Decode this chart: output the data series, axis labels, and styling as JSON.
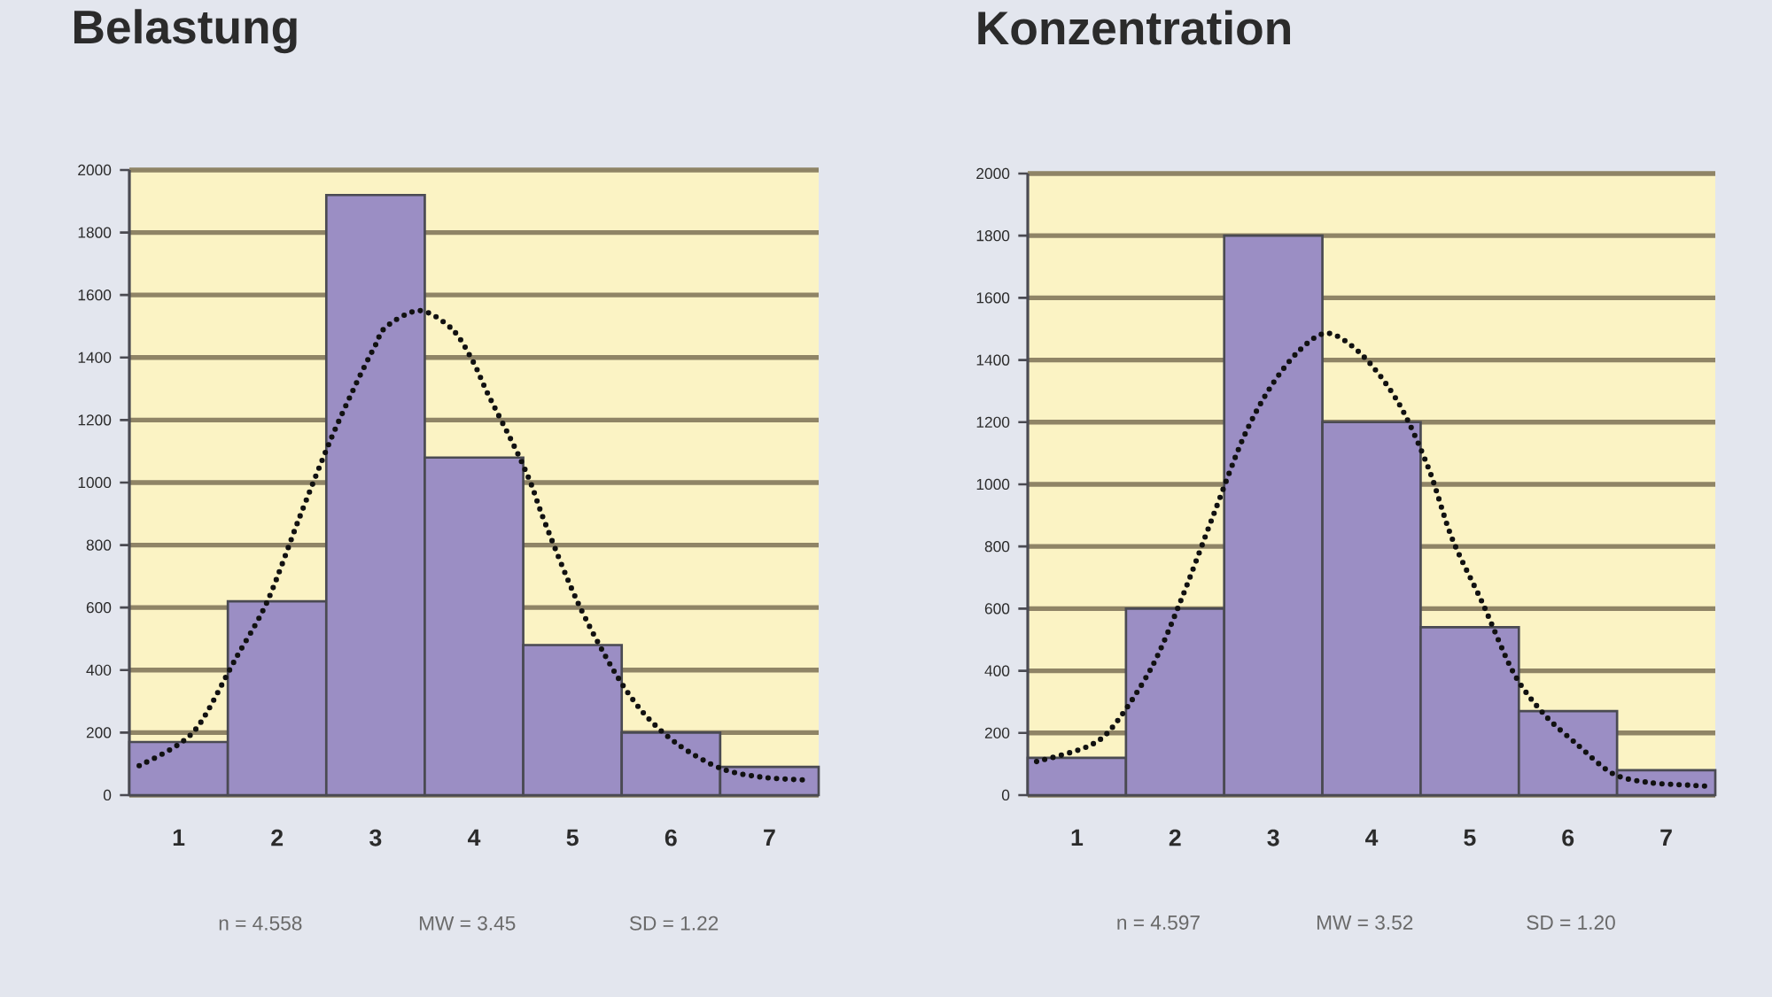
{
  "chart_data": [
    {
      "type": "histogram",
      "title": "Belastung",
      "bins": [
        0.5,
        1.5,
        2.5,
        3.5,
        4.5,
        5.5,
        6.5,
        7.5
      ],
      "xlim": [
        0.5,
        7.5
      ],
      "xticks": [
        1,
        2,
        3,
        4,
        5,
        6,
        7
      ],
      "ylim": [
        0,
        2000
      ],
      "yticks": [
        0,
        200,
        400,
        600,
        800,
        1000,
        1200,
        1400,
        1600,
        1800,
        2000
      ],
      "grid": "y",
      "series": [
        {
          "color": "#9b8ec4",
          "values": [
            170,
            620,
            1920,
            1080,
            480,
            200,
            90
          ]
        },
        {
          "type": "line",
          "color": "#111111",
          "line_style": "dotted",
          "x": [
            0.6,
            0.99,
            1.23,
            1.57,
            1.9,
            2.23,
            2.54,
            2.81,
            2.99,
            3.11,
            3.45,
            3.78,
            3.99,
            4.14,
            4.41,
            4.57,
            4.72,
            5.05,
            5.41,
            5.72,
            6.08,
            6.51,
            6.93,
            7.41
          ],
          "values": [
            94,
            160,
            235,
            431,
            619,
            890,
            1134,
            1321,
            1434,
            1499,
            1550,
            1490,
            1387,
            1284,
            1115,
            1003,
            872,
            619,
            403,
            263,
            160,
            85,
            57,
            48
          ]
        }
      ],
      "annotations": [
        "n = 4.558",
        "MW = 3.45",
        "SD = 1.22"
      ]
    },
    {
      "type": "histogram",
      "title": "Konzentration",
      "bins": [
        0.5,
        1.5,
        2.5,
        3.5,
        4.5,
        5.5,
        6.5,
        7.5
      ],
      "xlim": [
        0.5,
        7.5
      ],
      "xticks": [
        1,
        2,
        3,
        4,
        5,
        6,
        7
      ],
      "ylim": [
        0,
        2000
      ],
      "yticks": [
        0,
        200,
        400,
        600,
        800,
        1000,
        1200,
        1400,
        1600,
        1800,
        2000
      ],
      "grid": "y",
      "series": [
        {
          "color": "#9b8ec4",
          "values": [
            120,
            600,
            1800,
            1200,
            540,
            270,
            80
          ]
        },
        {
          "type": "line",
          "color": "#111111",
          "line_style": "dotted",
          "x": [
            0.59,
            1.1,
            1.37,
            1.76,
            2.06,
            2.39,
            2.69,
            2.96,
            3.26,
            3.56,
            3.92,
            4.28,
            4.58,
            4.82,
            5.13,
            5.45,
            5.76,
            6.09,
            6.45,
            6.81,
            7.23,
            7.47
          ],
          "values": [
            108,
            155,
            221,
            410,
            627,
            901,
            1146,
            1307,
            1429,
            1486,
            1411,
            1259,
            1052,
            826,
            618,
            391,
            259,
            164,
            70,
            41,
            32,
            28
          ]
        }
      ],
      "annotations": [
        "n = 4.597",
        "MW = 3.52",
        "SD = 1.20"
      ]
    }
  ]
}
